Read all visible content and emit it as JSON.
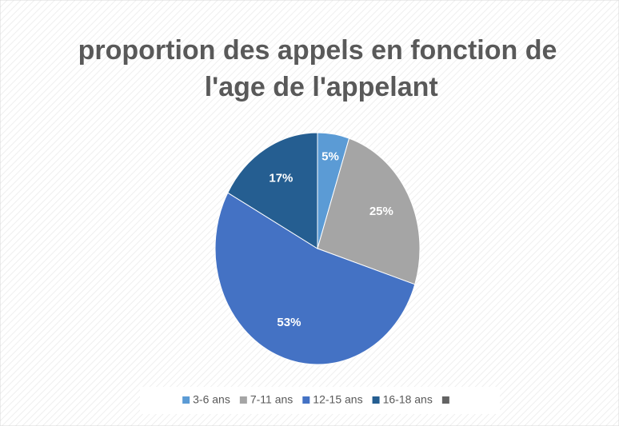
{
  "chart_data": {
    "type": "pie",
    "title": "proportion des appels en fonction de l'age de l'appelant",
    "categories": [
      "3-6 ans",
      "7-11 ans",
      "12-15 ans",
      "16-18 ans",
      null
    ],
    "values": [
      5,
      25,
      53,
      17,
      0
    ],
    "value_labels": [
      "5%",
      "25%",
      "53%",
      "17%",
      null
    ],
    "colors": [
      "#5b9bd5",
      "#a5a5a5",
      "#4472c4",
      "#255e91",
      "#636363"
    ],
    "legend": "bottom"
  }
}
